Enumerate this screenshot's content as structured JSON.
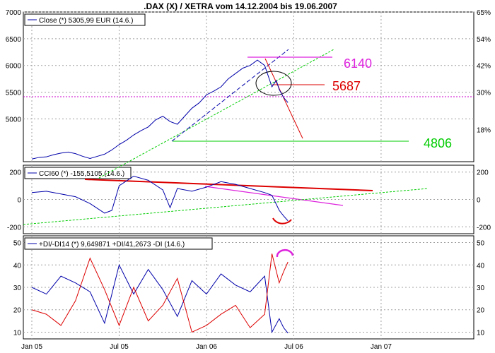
{
  "title": ".DAX (X) / XETRA vom 14.12.2004 bis 19.06.2007",
  "colors": {
    "price": "#0000aa",
    "trend_green": "#00cc00",
    "trend_blue": "#0000aa",
    "magenta": "#dd22dd",
    "red": "#dd0000",
    "grid": "#a0a0a0",
    "black": "#000000"
  },
  "time_axis": {
    "labels": [
      "Jan 05",
      "Jul 05",
      "Jan 06",
      "Jul 06",
      "Jan 07"
    ],
    "months": [
      0,
      6,
      12,
      18,
      24
    ]
  },
  "chart_data": [
    {
      "type": "line",
      "name": "price",
      "legend": "Close (*) 5305,99 EUR (14.6.)",
      "ylim": [
        4200,
        7000
      ],
      "yticks": [
        5000,
        5500,
        6000,
        6500,
        7000
      ],
      "right_ticks": [
        "18%",
        "30%",
        "42%",
        "54%",
        "65%"
      ],
      "right_tick_values": [
        4800,
        5500,
        6000,
        6500,
        7000
      ],
      "x_months": [
        0.0,
        0.5,
        1.0,
        1.5,
        2.0,
        2.5,
        3.0,
        3.5,
        4.0,
        4.5,
        5.0,
        5.5,
        6.0,
        6.5,
        7.0,
        7.5,
        8.0,
        8.5,
        9.0,
        9.5,
        10.0,
        10.5,
        11.0,
        11.5,
        12.0,
        12.5,
        13.0,
        13.5,
        14.0,
        14.5,
        15.0,
        15.5,
        16.0,
        16.5,
        16.8,
        17.0,
        17.3,
        17.6
      ],
      "values": [
        4250,
        4280,
        4290,
        4330,
        4360,
        4380,
        4350,
        4300,
        4260,
        4300,
        4340,
        4420,
        4520,
        4600,
        4700,
        4780,
        4850,
        4980,
        5050,
        4950,
        4900,
        5050,
        5200,
        5300,
        5450,
        5520,
        5600,
        5750,
        5850,
        5950,
        6000,
        6100,
        6000,
        5600,
        5720,
        5550,
        5400,
        5306
      ],
      "annotations": [
        {
          "label": "6140",
          "value": 6140,
          "color": "magenta"
        },
        {
          "label": "5687",
          "value": 5687,
          "color": "red"
        },
        {
          "label": "4806",
          "value": 4806,
          "color": "green"
        }
      ],
      "reference_line": 5500
    },
    {
      "type": "line",
      "name": "cci60",
      "legend": "CCI60 (*) -155,5105 (14.6.)",
      "ylim": [
        -250,
        250
      ],
      "yticks": [
        -200,
        0,
        200
      ],
      "x_months": [
        0,
        1,
        2,
        3,
        4,
        5,
        5.5,
        6,
        7,
        8,
        9,
        9.5,
        10,
        11,
        12,
        13,
        14,
        15,
        16,
        16.5,
        17,
        17.3,
        17.6
      ],
      "values": [
        50,
        60,
        40,
        20,
        -30,
        -100,
        -80,
        100,
        170,
        140,
        70,
        -60,
        80,
        60,
        90,
        130,
        110,
        80,
        50,
        30,
        -80,
        -120,
        -156
      ]
    },
    {
      "type": "line",
      "name": "dmi14",
      "legend": "+DI/-DI14 (*) 9,649871 +DI/41,2673 -DI (14.6.)",
      "ylim": [
        7,
        53
      ],
      "yticks": [
        10,
        20,
        30,
        40,
        50
      ],
      "series": [
        {
          "name": "+DI",
          "color": "price",
          "x_months": [
            0,
            1,
            2,
            3,
            4,
            5,
            6,
            7,
            8,
            9,
            10,
            11,
            12,
            13,
            14,
            15,
            16,
            16.5,
            17,
            17.3,
            17.6
          ],
          "values": [
            30,
            27,
            35,
            32,
            28,
            14,
            40,
            27,
            38,
            29,
            17,
            33,
            27,
            36,
            31,
            28,
            35,
            10,
            16,
            12,
            9.6
          ]
        },
        {
          "name": "-DI",
          "color": "red",
          "x_months": [
            0,
            1,
            2,
            3,
            4,
            5,
            6,
            7,
            8,
            9,
            10,
            11,
            12,
            13,
            14,
            15,
            16,
            16.5,
            17,
            17.3,
            17.6
          ],
          "values": [
            20,
            18,
            13,
            24,
            43,
            29,
            13,
            30,
            15,
            22,
            34,
            10,
            13,
            18,
            22,
            12,
            18,
            45,
            32,
            37,
            41.3
          ]
        }
      ]
    }
  ]
}
